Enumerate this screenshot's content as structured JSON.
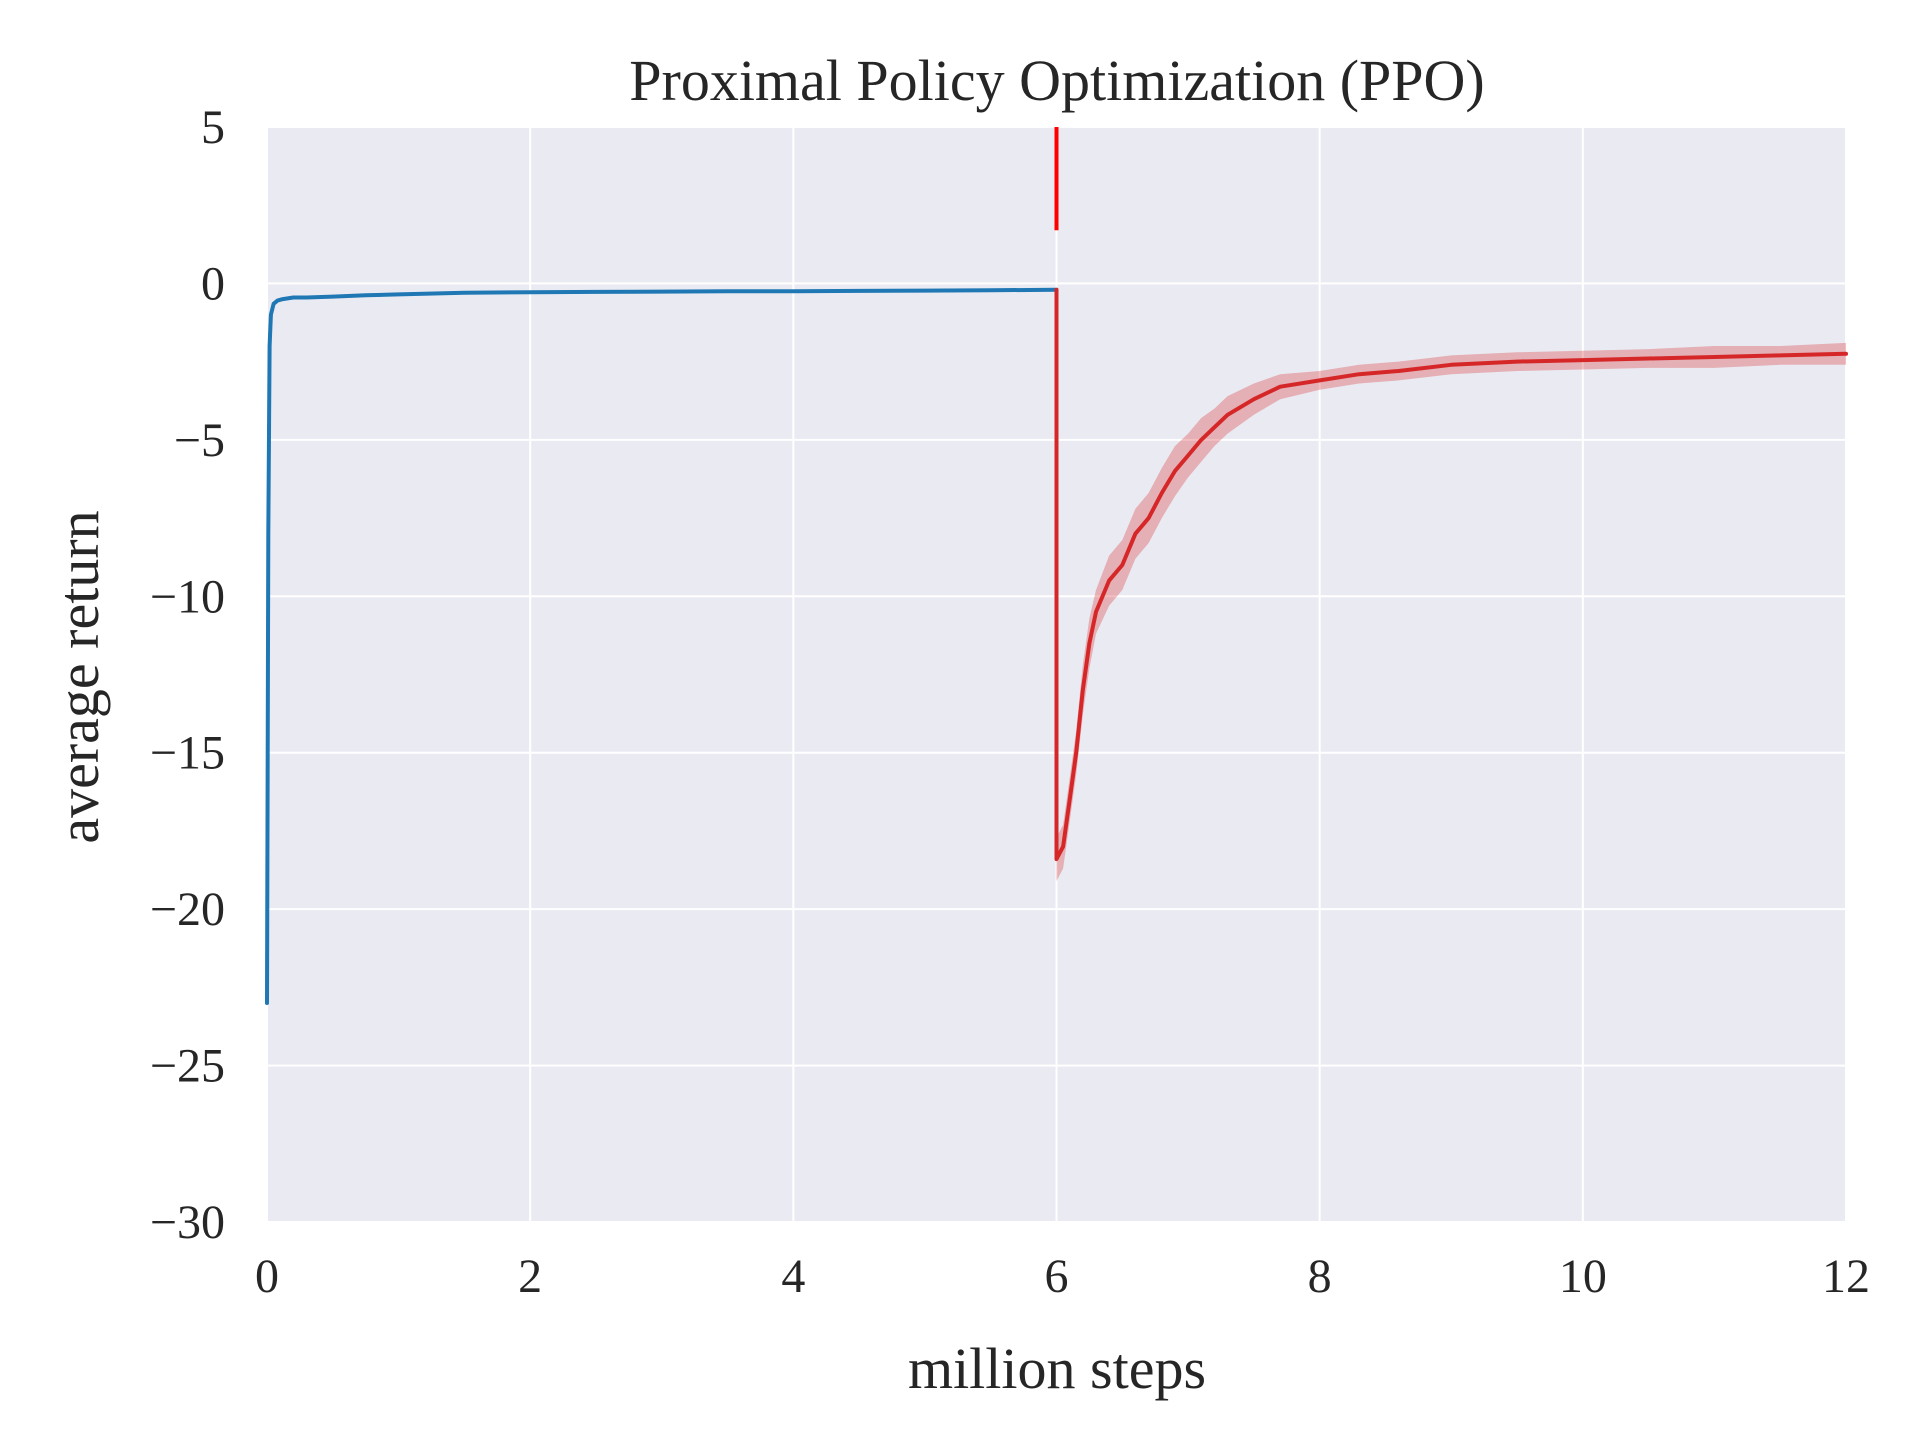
{
  "chart_data": {
    "type": "line",
    "title": "Proximal Policy Optimization (PPO)",
    "xlabel": "million steps",
    "ylabel": "average return",
    "xlim": [
      0,
      12
    ],
    "ylim": [
      -30,
      5
    ],
    "x_ticks": [
      0,
      2,
      4,
      6,
      8,
      10,
      12
    ],
    "x_tick_labels": [
      "0",
      "2",
      "4",
      "6",
      "8",
      "10",
      "12"
    ],
    "y_ticks": [
      5,
      0,
      -5,
      -10,
      -15,
      -20,
      -25,
      -30
    ],
    "y_tick_labels": [
      "5",
      "0",
      "−5",
      "−10",
      "−15",
      "−20",
      "−25",
      "−30"
    ],
    "grid": true,
    "style": "seaborn-darkgrid",
    "background_color": "#eaeaf2",
    "vertical_marker": {
      "x": 6,
      "y_range": [
        1.7,
        5
      ],
      "color": "#ff0000"
    },
    "series": [
      {
        "color": "#1f77b4",
        "x": [
          0.0,
          0.01,
          0.02,
          0.03,
          0.05,
          0.08,
          0.12,
          0.2,
          0.3,
          0.5,
          0.75,
          1.0,
          1.5,
          2.0,
          2.5,
          3.0,
          3.5,
          4.0,
          4.5,
          5.0,
          5.5,
          6.0
        ],
        "y": [
          -23.0,
          -8.0,
          -2.0,
          -1.0,
          -0.65,
          -0.55,
          -0.5,
          -0.45,
          -0.45,
          -0.42,
          -0.38,
          -0.35,
          -0.3,
          -0.28,
          -0.27,
          -0.26,
          -0.25,
          -0.25,
          -0.24,
          -0.23,
          -0.22,
          -0.2
        ]
      },
      {
        "color": "#d62728",
        "band_color": "#d62728",
        "x": [
          6.0,
          6.0,
          6.05,
          6.1,
          6.15,
          6.2,
          6.25,
          6.3,
          6.4,
          6.5,
          6.6,
          6.7,
          6.8,
          6.9,
          7.0,
          7.1,
          7.2,
          7.3,
          7.5,
          7.7,
          8.0,
          8.3,
          8.6,
          9.0,
          9.5,
          10.0,
          10.5,
          11.0,
          11.5,
          12.0
        ],
        "y": [
          -0.2,
          -18.4,
          -18.0,
          -16.5,
          -15.0,
          -13.0,
          -11.5,
          -10.5,
          -9.5,
          -9.0,
          -8.0,
          -7.5,
          -6.7,
          -6.0,
          -5.5,
          -5.0,
          -4.6,
          -4.2,
          -3.7,
          -3.3,
          -3.1,
          -2.9,
          -2.8,
          -2.6,
          -2.5,
          -2.45,
          -2.4,
          -2.35,
          -2.3,
          -2.25
        ],
        "lower": [
          -0.2,
          -19.1,
          -18.7,
          -17.2,
          -15.7,
          -13.8,
          -12.3,
          -11.2,
          -10.3,
          -9.8,
          -8.8,
          -8.3,
          -7.5,
          -6.8,
          -6.2,
          -5.7,
          -5.2,
          -4.8,
          -4.2,
          -3.7,
          -3.4,
          -3.2,
          -3.1,
          -2.9,
          -2.8,
          -2.75,
          -2.7,
          -2.7,
          -2.6,
          -2.6
        ],
        "upper": [
          -0.2,
          -17.7,
          -17.3,
          -15.8,
          -14.3,
          -12.2,
          -10.7,
          -9.8,
          -8.7,
          -8.2,
          -7.2,
          -6.7,
          -5.9,
          -5.2,
          -4.8,
          -4.3,
          -4.0,
          -3.6,
          -3.2,
          -2.9,
          -2.8,
          -2.6,
          -2.5,
          -2.3,
          -2.2,
          -2.15,
          -2.1,
          -2.0,
          -2.0,
          -1.9
        ]
      }
    ]
  }
}
